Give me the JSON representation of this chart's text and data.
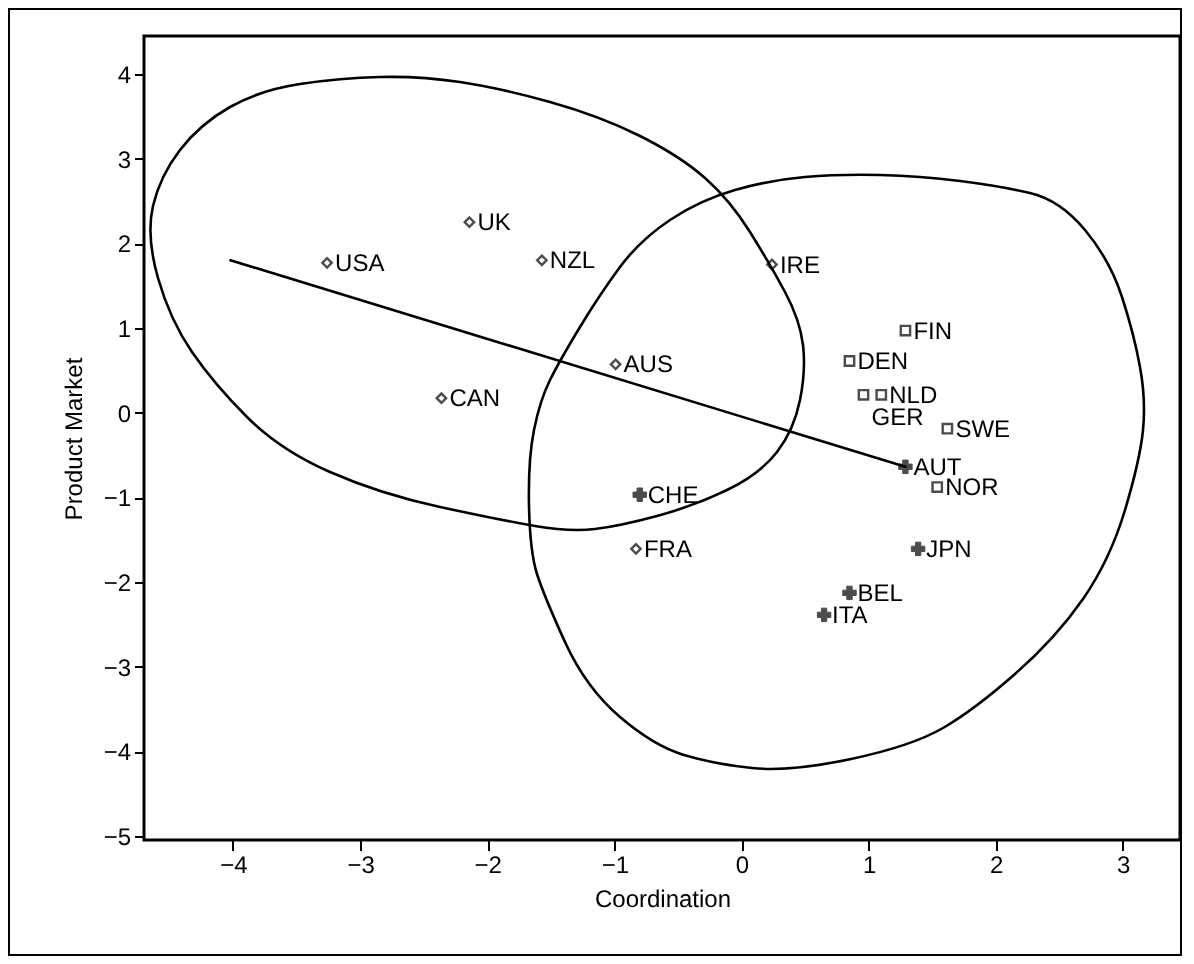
{
  "chart_data": {
    "type": "scatter",
    "xlabel": "Coordination",
    "ylabel": "Product Market",
    "xlim": [
      -4.7,
      3.45
    ],
    "ylim": [
      -5.05,
      4.45
    ],
    "xticks": [
      -4,
      -3,
      -2,
      -1,
      0,
      1,
      2,
      3
    ],
    "yticks": [
      -5,
      -4,
      -3,
      -2,
      -1,
      0,
      1,
      2,
      3,
      4
    ],
    "grid": false,
    "series": [
      {
        "marker": "diamond",
        "color": "#000000",
        "x": [
          -3.26,
          -2.14,
          -1.57,
          -2.36,
          -0.99,
          0.24,
          -0.83
        ],
        "values": [
          1.77,
          2.25,
          1.8,
          0.17,
          0.57,
          1.75,
          -1.61
        ]
      },
      {
        "marker": "square",
        "color": "#000000",
        "x": [
          1.29,
          0.85,
          1.1,
          0.96,
          1.62,
          1.54
        ],
        "values": [
          0.97,
          0.61,
          0.21,
          0.21,
          -0.19,
          -0.88
        ]
      },
      {
        "marker": "cross",
        "color": "#000000",
        "x": [
          1.29,
          -0.8,
          1.39,
          0.85,
          0.65
        ],
        "values": [
          -0.64,
          -0.97,
          -1.61,
          -2.13,
          -2.39
        ]
      },
      {
        "type": "line",
        "marker": "none",
        "line_style": "solid",
        "color": "#000000",
        "x": [
          -4.02,
          1.29
        ],
        "values": [
          1.8,
          -0.64
        ]
      }
    ],
    "annotations": [
      {
        "text": "USA",
        "x": -3.26,
        "y": 1.77
      },
      {
        "text": "UK",
        "x": -2.14,
        "y": 2.25
      },
      {
        "text": "NZL",
        "x": -1.57,
        "y": 1.8
      },
      {
        "text": "CAN",
        "x": -2.36,
        "y": 0.17
      },
      {
        "text": "AUS",
        "x": -0.99,
        "y": 0.57
      },
      {
        "text": "IRE",
        "x": 0.24,
        "y": 1.75
      },
      {
        "text": "FRA",
        "x": -0.83,
        "y": -1.61
      },
      {
        "text": "FIN",
        "x": 1.29,
        "y": 0.97
      },
      {
        "text": "DEN",
        "x": 0.85,
        "y": 0.61
      },
      {
        "text": "NLD",
        "x": 1.1,
        "y": 0.21
      },
      {
        "text": "GER",
        "x": 0.96,
        "y": 0.21
      },
      {
        "text": "SWE",
        "x": 1.62,
        "y": -0.19
      },
      {
        "text": "NOR",
        "x": 1.54,
        "y": -0.88
      },
      {
        "text": "AUT",
        "x": 1.29,
        "y": -0.64
      },
      {
        "text": "CHE",
        "x": -0.8,
        "y": -0.97
      },
      {
        "text": "JPN",
        "x": 1.39,
        "y": -1.61
      },
      {
        "text": "BEL",
        "x": 0.85,
        "y": -2.13
      },
      {
        "text": "ITA",
        "x": 0.65,
        "y": -2.39
      }
    ]
  }
}
